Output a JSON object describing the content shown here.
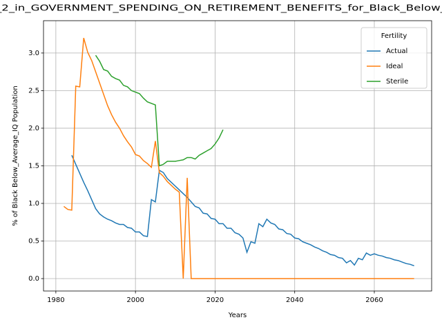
{
  "chart_data": {
    "type": "line",
    "title": "_2_in_GOVERNMENT_SPENDING_ON_RETIREMENT_BENEFITS_for_Black_Below_",
    "xlabel": "Years",
    "ylabel": "% of Black Below_Average_IQ Population",
    "legend_title": "Fertility",
    "legend": "upper right",
    "grid": true,
    "xlim": [
      1976.9,
      2074.4
    ],
    "ylim": [
      -0.165,
      3.43
    ],
    "xticks": [
      1980,
      2000,
      2020,
      2040,
      2060
    ],
    "yticks": [
      {
        "value": 0,
        "label": "0.0"
      },
      0.5,
      {
        "value": 1,
        "label": "1.0"
      },
      1.5,
      {
        "value": 2,
        "label": "2.0"
      },
      2.5,
      {
        "value": 3,
        "label": "3.0"
      }
    ],
    "x": [
      1982,
      1983,
      1984,
      1985,
      1986,
      1987,
      1988,
      1989,
      1990,
      1991,
      1992,
      1993,
      1994,
      1995,
      1996,
      1997,
      1998,
      1999,
      2000,
      2001,
      2002,
      2003,
      2004,
      2005,
      2006,
      2007,
      2008,
      2009,
      2010,
      2011,
      2012,
      2013,
      2014,
      2015,
      2016,
      2017,
      2018,
      2019,
      2020,
      2021,
      2022,
      2023,
      2024,
      2025,
      2026,
      2027,
      2028,
      2029,
      2030,
      2031,
      2032,
      2033,
      2034,
      2035,
      2036,
      2037,
      2038,
      2039,
      2040,
      2041,
      2042,
      2043,
      2044,
      2045,
      2046,
      2047,
      2048,
      2049,
      2050,
      2051,
      2052,
      2053,
      2054,
      2055,
      2056,
      2057,
      2058,
      2059,
      2060,
      2061,
      2062,
      2063,
      2064,
      2065,
      2066,
      2067,
      2068,
      2069,
      2070
    ],
    "series": [
      {
        "name": "Actual",
        "color": "#1f77b4",
        "values": [
          null,
          null,
          1.64,
          1.52,
          1.4,
          1.28,
          1.17,
          1.05,
          0.93,
          0.86,
          0.82,
          0.79,
          0.77,
          0.74,
          0.72,
          0.72,
          0.68,
          0.67,
          0.62,
          0.62,
          0.57,
          0.56,
          1.05,
          1.02,
          1.44,
          1.41,
          1.33,
          1.28,
          1.23,
          1.18,
          1.13,
          1.08,
          1.02,
          0.96,
          0.94,
          0.87,
          0.86,
          0.8,
          0.79,
          0.73,
          0.73,
          0.67,
          0.67,
          0.61,
          0.59,
          0.54,
          0.35,
          0.49,
          0.47,
          0.73,
          0.69,
          0.79,
          0.74,
          0.72,
          0.66,
          0.65,
          0.6,
          0.59,
          0.54,
          0.53,
          0.49,
          0.47,
          0.45,
          0.42,
          0.4,
          0.37,
          0.35,
          0.32,
          0.31,
          0.28,
          0.27,
          0.21,
          0.24,
          0.18,
          0.27,
          0.25,
          0.34,
          0.31,
          0.33,
          0.31,
          0.3,
          0.28,
          0.27,
          0.25,
          0.24,
          0.22,
          0.2,
          0.19,
          0.17
        ]
      },
      {
        "name": "Ideal",
        "color": "#ff7f0e",
        "values": [
          0.96,
          0.92,
          0.91,
          2.56,
          2.55,
          3.2,
          3.01,
          2.9,
          2.75,
          2.6,
          2.45,
          2.3,
          2.18,
          2.08,
          2.0,
          1.9,
          1.82,
          1.75,
          1.65,
          1.63,
          1.57,
          1.53,
          1.48,
          1.83,
          1.41,
          1.36,
          1.29,
          1.24,
          1.19,
          1.15,
          0,
          1.34,
          0,
          0,
          0,
          0,
          0,
          0,
          0,
          0,
          0,
          0,
          0,
          0,
          0,
          0,
          0,
          0,
          0,
          0,
          0,
          0,
          0,
          0,
          0,
          0,
          0,
          0,
          0,
          0,
          0,
          0,
          0,
          0,
          0,
          0,
          0,
          0,
          0,
          0,
          0,
          0,
          0,
          0,
          0,
          0,
          0,
          0,
          0,
          0,
          0,
          0,
          0,
          0,
          0,
          0,
          0,
          0,
          0
        ]
      },
      {
        "name": "Sterile",
        "color": "#2ca02c",
        "values": [
          null,
          null,
          null,
          null,
          null,
          null,
          null,
          null,
          2.97,
          2.89,
          2.78,
          2.76,
          2.69,
          2.66,
          2.64,
          2.57,
          2.55,
          2.5,
          2.48,
          2.46,
          2.4,
          2.35,
          2.33,
          2.31,
          1.5,
          1.52,
          1.56,
          1.56,
          1.56,
          1.57,
          1.58,
          1.61,
          1.61,
          1.59,
          1.64,
          1.67,
          1.7,
          1.73,
          1.79,
          1.87,
          1.98,
          null,
          null,
          null,
          null,
          null,
          null,
          null,
          null,
          null,
          null,
          null,
          null,
          null,
          null,
          null,
          null,
          null,
          null,
          null,
          null,
          null,
          null,
          null,
          null,
          null,
          null,
          null,
          null,
          null,
          null,
          null,
          null,
          null,
          null,
          null,
          null,
          null,
          null,
          null,
          null,
          null,
          null,
          null,
          null,
          null,
          null,
          null,
          null
        ]
      }
    ]
  }
}
